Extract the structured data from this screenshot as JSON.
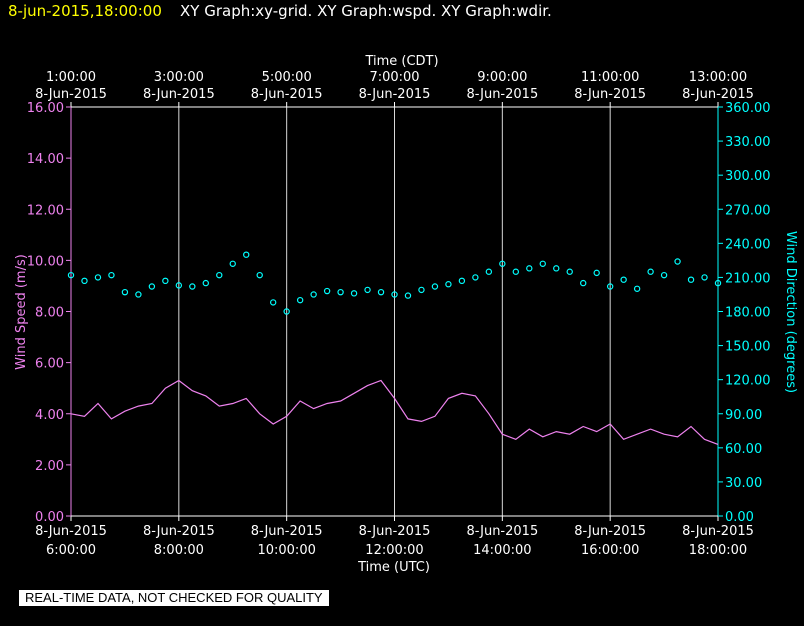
{
  "header": {
    "timestamp": "8-jun-2015,18:00:00",
    "graphs": "XY Graph:xy-grid.  XY Graph:wspd.  XY Graph:wdir."
  },
  "footer": {
    "quality_note": "REAL-TIME DATA, NOT CHECKED FOR QUALITY"
  },
  "colors": {
    "wind_speed": "#ee82ee",
    "wind_direction": "#00ffff",
    "timestamp": "#ffff00",
    "grid": "#ffffff",
    "background": "#000000"
  },
  "chart_data": {
    "type": "line",
    "x_range_utc_hours": [
      6,
      18
    ],
    "x_axis_bottom": {
      "label": "Time (UTC)",
      "ticks": [
        {
          "hour": 6,
          "date": "8-Jun-2015",
          "time": "6:00:00"
        },
        {
          "hour": 8,
          "date": "8-Jun-2015",
          "time": "8:00:00"
        },
        {
          "hour": 10,
          "date": "8-Jun-2015",
          "time": "10:00:00"
        },
        {
          "hour": 12,
          "date": "8-Jun-2015",
          "time": "12:00:00"
        },
        {
          "hour": 14,
          "date": "8-Jun-2015",
          "time": "14:00:00"
        },
        {
          "hour": 16,
          "date": "8-Jun-2015",
          "time": "16:00:00"
        },
        {
          "hour": 18,
          "date": "8-Jun-2015",
          "time": "18:00:00"
        }
      ]
    },
    "x_axis_top": {
      "label": "Time (CDT)",
      "ticks": [
        {
          "hour": 6,
          "time": "1:00:00",
          "date": "8-Jun-2015"
        },
        {
          "hour": 8,
          "time": "3:00:00",
          "date": "8-Jun-2015"
        },
        {
          "hour": 10,
          "time": "5:00:00",
          "date": "8-Jun-2015"
        },
        {
          "hour": 12,
          "time": "7:00:00",
          "date": "8-Jun-2015"
        },
        {
          "hour": 14,
          "time": "9:00:00",
          "date": "8-Jun-2015"
        },
        {
          "hour": 16,
          "time": "11:00:00",
          "date": "8-Jun-2015"
        },
        {
          "hour": 18,
          "time": "13:00:00",
          "date": "8-Jun-2015"
        }
      ]
    },
    "y_left": {
      "label": "Wind Speed (m/s)",
      "ylim": [
        0,
        16
      ],
      "ticks": [
        {
          "value": 0,
          "label": "0.00"
        },
        {
          "value": 2,
          "label": "2.00"
        },
        {
          "value": 4,
          "label": "4.00"
        },
        {
          "value": 6,
          "label": "6.00"
        },
        {
          "value": 8,
          "label": "8.00"
        },
        {
          "value": 10,
          "label": "10.00"
        },
        {
          "value": 12,
          "label": "12.00"
        },
        {
          "value": 14,
          "label": "14.00"
        },
        {
          "value": 16,
          "label": "16.00"
        }
      ]
    },
    "y_right": {
      "label": "Wind Direction (degrees)",
      "ylim": [
        0,
        360
      ],
      "ticks": [
        {
          "value": 0,
          "label": "0.00"
        },
        {
          "value": 30,
          "label": "30.00"
        },
        {
          "value": 60,
          "label": "60.00"
        },
        {
          "value": 90,
          "label": "90.00"
        },
        {
          "value": 120,
          "label": "120.00"
        },
        {
          "value": 150,
          "label": "150.00"
        },
        {
          "value": 180,
          "label": "180.00"
        },
        {
          "value": 210,
          "label": "210.00"
        },
        {
          "value": 240,
          "label": "240.00"
        },
        {
          "value": 270,
          "label": "270.00"
        },
        {
          "value": 300,
          "label": "300.00"
        },
        {
          "value": 330,
          "label": "330.00"
        },
        {
          "value": 360,
          "label": "360.00"
        }
      ]
    },
    "grid": "vertical",
    "series": [
      {
        "id": "wspd",
        "axis": "left",
        "style": "line",
        "x": [
          6.0,
          6.25,
          6.5,
          6.75,
          7.0,
          7.25,
          7.5,
          7.75,
          8.0,
          8.25,
          8.5,
          8.75,
          9.0,
          9.25,
          9.5,
          9.75,
          10.0,
          10.25,
          10.5,
          10.75,
          11.0,
          11.25,
          11.5,
          11.75,
          12.0,
          12.25,
          12.5,
          12.75,
          13.0,
          13.25,
          13.5,
          13.75,
          14.0,
          14.25,
          14.5,
          14.75,
          15.0,
          15.25,
          15.5,
          15.75,
          16.0,
          16.25,
          16.5,
          16.75,
          17.0,
          17.25,
          17.5,
          17.75,
          18.0
        ],
        "values": [
          4.0,
          3.9,
          4.4,
          3.8,
          4.1,
          4.3,
          4.4,
          5.0,
          5.3,
          4.9,
          4.7,
          4.3,
          4.4,
          4.6,
          4.0,
          3.6,
          3.9,
          4.5,
          4.2,
          4.4,
          4.5,
          4.8,
          5.1,
          5.3,
          4.6,
          3.8,
          3.7,
          3.9,
          4.6,
          4.8,
          4.7,
          4.0,
          3.2,
          3.0,
          3.4,
          3.1,
          3.3,
          3.2,
          3.5,
          3.3,
          3.6,
          3.0,
          3.2,
          3.4,
          3.2,
          3.1,
          3.5,
          3.0,
          2.8
        ]
      },
      {
        "id": "wdir",
        "axis": "right",
        "style": "points",
        "x": [
          6.0,
          6.25,
          6.5,
          6.75,
          7.0,
          7.25,
          7.5,
          7.75,
          8.0,
          8.25,
          8.5,
          8.75,
          9.0,
          9.25,
          9.5,
          9.75,
          10.0,
          10.25,
          10.5,
          10.75,
          11.0,
          11.25,
          11.5,
          11.75,
          12.0,
          12.25,
          12.5,
          12.75,
          13.0,
          13.25,
          13.5,
          13.75,
          14.0,
          14.25,
          14.5,
          14.75,
          15.0,
          15.25,
          15.5,
          15.75,
          16.0,
          16.25,
          16.5,
          16.75,
          17.0,
          17.25,
          17.5,
          17.75,
          18.0
        ],
        "values": [
          212,
          207,
          210,
          212,
          197,
          195,
          202,
          207,
          203,
          202,
          205,
          212,
          222,
          230,
          212,
          188,
          180,
          190,
          195,
          198,
          197,
          196,
          199,
          197,
          195,
          194,
          199,
          202,
          204,
          207,
          210,
          215,
          222,
          215,
          218,
          222,
          218,
          215,
          205,
          214,
          202,
          208,
          200,
          215,
          212,
          224,
          208,
          210,
          205
        ]
      }
    ]
  }
}
